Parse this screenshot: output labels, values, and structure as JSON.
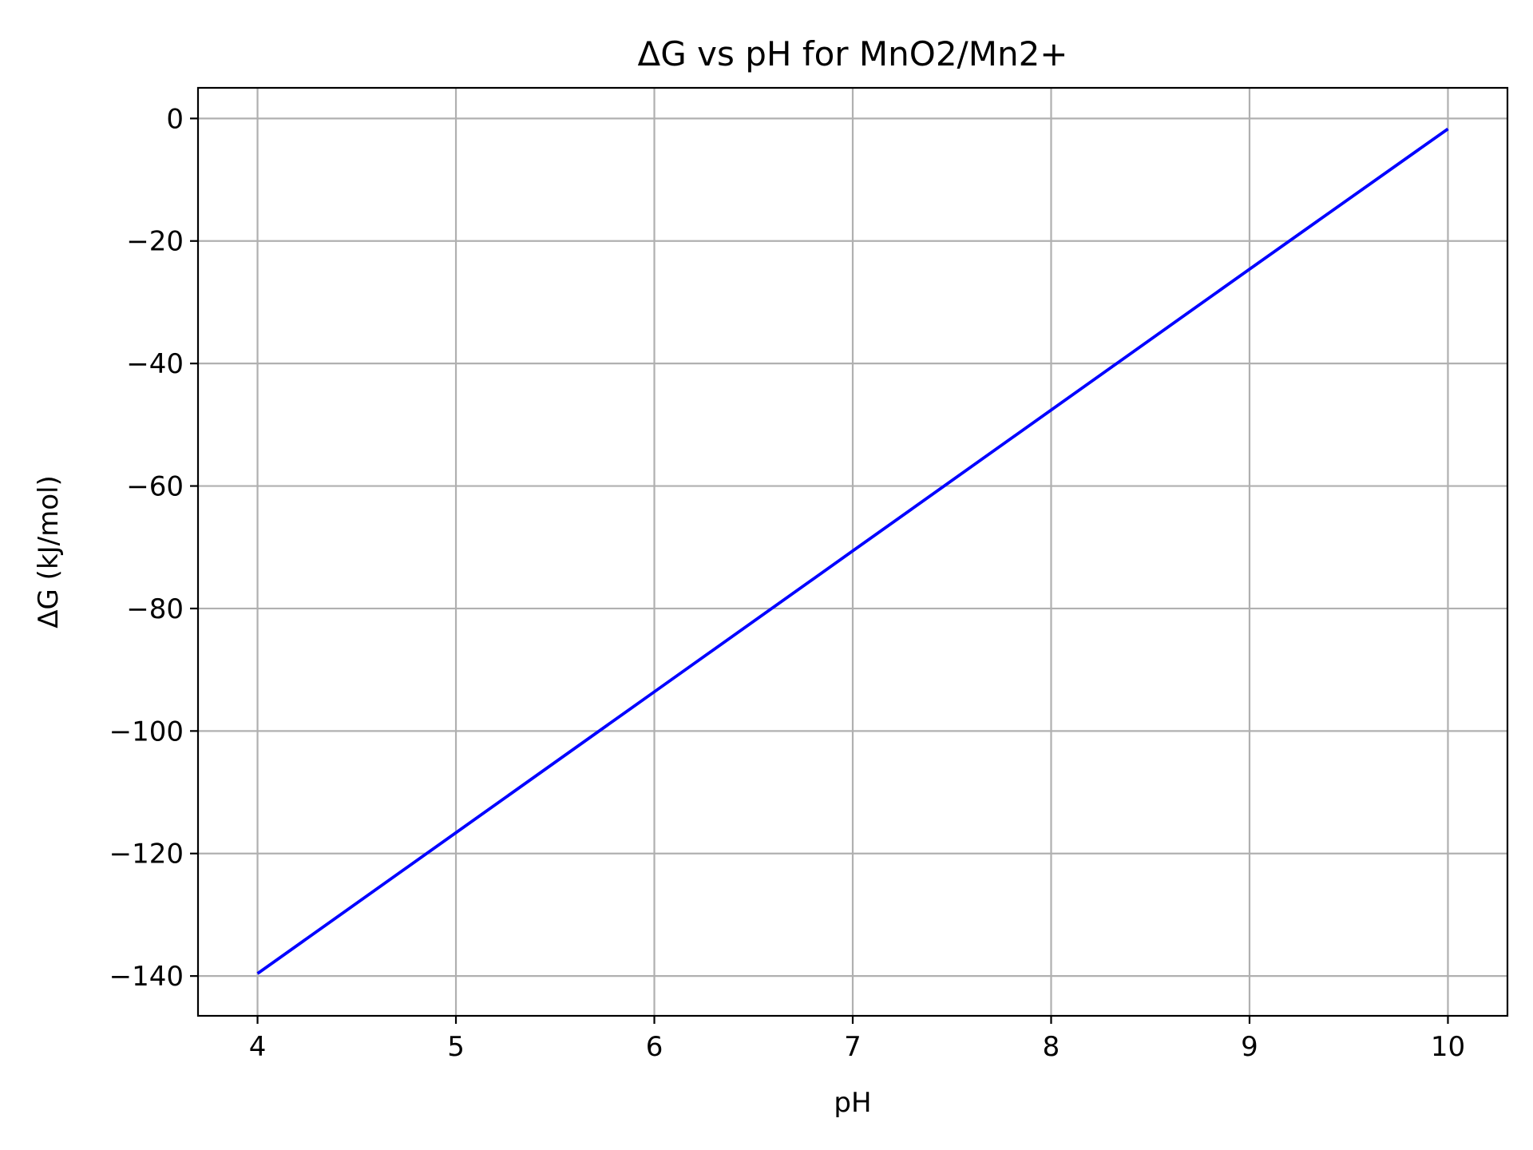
{
  "chart_data": {
    "type": "line",
    "title": "ΔG vs pH for MnO2/Mn2+",
    "xlabel": "pH",
    "ylabel": "ΔG (kJ/mol)",
    "xlim": [
      3.7,
      10.3
    ],
    "ylim": [
      -146.5,
      5
    ],
    "xticks": [
      4,
      5,
      6,
      7,
      8,
      9,
      10
    ],
    "xtick_labels": [
      "4",
      "5",
      "6",
      "7",
      "8",
      "9",
      "10"
    ],
    "yticks": [
      0,
      -20,
      -40,
      -60,
      -80,
      -100,
      -120,
      -140
    ],
    "ytick_labels": [
      "0",
      "−20",
      "−40",
      "−60",
      "−80",
      "−100",
      "−120",
      "−140"
    ],
    "grid": true,
    "series": [
      {
        "color": "#0000ff",
        "x": [
          4,
          5,
          6,
          7,
          8,
          9,
          10
        ],
        "y": [
          -139.6,
          -116.6,
          -93.6,
          -70.6,
          -47.6,
          -24.6,
          -1.7
        ]
      }
    ]
  }
}
